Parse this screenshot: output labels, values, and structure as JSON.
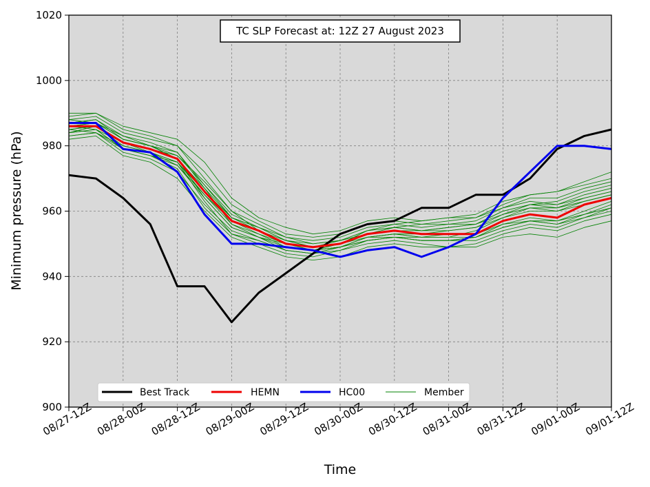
{
  "chart_data": {
    "type": "line",
    "title": "TC SLP Forecast at: 12Z 27 August 2023",
    "xlabel": "Time",
    "ylabel": "Minimum pressure (hPa)",
    "ylim": [
      900,
      1020
    ],
    "yticks": [
      900,
      920,
      940,
      960,
      980,
      1000,
      1020
    ],
    "x_tick_labels": [
      "08/27-12Z",
      "08/28-00Z",
      "08/28-12Z",
      "08/29-00Z",
      "08/29-12Z",
      "08/30-00Z",
      "08/30-12Z",
      "08/31-00Z",
      "08/31-12Z",
      "09/01-00Z",
      "09/01-12Z"
    ],
    "x_step_hours": 6,
    "grid": true,
    "legend_position": "bottom-left",
    "series": [
      {
        "name": "Best Track",
        "color": "#000000",
        "values": [
          971,
          970,
          964,
          956,
          937,
          937,
          926,
          935,
          941,
          947,
          953,
          956,
          957,
          961,
          961,
          965,
          965,
          970,
          979,
          983,
          985
        ]
      },
      {
        "name": "HEMN",
        "color": "#ee0000",
        "values": [
          986,
          986,
          981,
          979,
          976,
          966,
          957,
          954,
          950,
          949,
          950,
          953,
          954,
          953,
          953,
          953,
          957,
          959,
          958,
          962,
          964
        ]
      },
      {
        "name": "HC00",
        "color": "#0000ee",
        "values": [
          987,
          987,
          979,
          978,
          972,
          959,
          950,
          950,
          949,
          948,
          946,
          948,
          949,
          946,
          949,
          953,
          964,
          972,
          980,
          980,
          979
        ]
      },
      {
        "name": "Member",
        "color": "#008000",
        "members": [
          [
            985,
            986,
            981,
            979,
            976,
            966,
            957,
            954,
            950,
            949,
            950,
            953,
            954,
            953,
            953,
            953,
            957,
            959,
            958,
            962,
            964
          ],
          [
            988,
            989,
            984,
            982,
            980,
            970,
            960,
            956,
            952,
            951,
            952,
            955,
            956,
            955,
            956,
            956,
            960,
            962,
            962,
            965,
            967
          ],
          [
            983,
            984,
            978,
            976,
            972,
            962,
            954,
            951,
            948,
            947,
            948,
            951,
            952,
            951,
            951,
            951,
            954,
            956,
            955,
            958,
            960
          ],
          [
            990,
            990,
            986,
            984,
            982,
            975,
            964,
            958,
            955,
            953,
            954,
            957,
            958,
            957,
            958,
            959,
            963,
            965,
            966,
            969,
            972
          ],
          [
            982,
            983,
            977,
            975,
            970,
            960,
            952,
            949,
            946,
            945,
            946,
            949,
            950,
            949,
            949,
            949,
            952,
            953,
            952,
            955,
            957
          ],
          [
            987,
            988,
            982,
            980,
            978,
            968,
            958,
            955,
            951,
            950,
            951,
            954,
            955,
            954,
            954,
            955,
            958,
            960,
            960,
            963,
            965
          ],
          [
            984,
            985,
            979,
            977,
            974,
            964,
            955,
            952,
            949,
            948,
            949,
            952,
            953,
            952,
            952,
            952,
            955,
            957,
            956,
            959,
            961
          ],
          [
            986,
            987,
            983,
            981,
            978,
            967,
            956,
            952,
            950,
            948,
            950,
            953,
            955,
            956,
            957,
            958,
            962,
            965,
            966,
            968,
            970
          ],
          [
            985,
            986,
            980,
            978,
            975,
            963,
            953,
            950,
            947,
            946,
            948,
            950,
            951,
            950,
            949,
            950,
            953,
            955,
            954,
            957,
            959
          ],
          [
            989,
            990,
            985,
            983,
            980,
            972,
            962,
            957,
            953,
            952,
            953,
            956,
            957,
            956,
            956,
            957,
            961,
            964,
            964,
            967,
            969
          ],
          [
            983,
            984,
            979,
            977,
            973,
            961,
            953,
            951,
            948,
            947,
            949,
            952,
            953,
            953,
            954,
            955,
            959,
            962,
            963,
            966,
            968
          ],
          [
            988,
            987,
            982,
            980,
            976,
            967,
            958,
            955,
            952,
            950,
            951,
            953,
            954,
            954,
            955,
            956,
            959,
            961,
            961,
            964,
            966
          ],
          [
            986,
            985,
            979,
            977,
            975,
            965,
            956,
            953,
            949,
            948,
            950,
            952,
            952,
            951,
            951,
            952,
            956,
            958,
            957,
            960,
            963
          ],
          [
            984,
            986,
            981,
            979,
            977,
            969,
            960,
            954,
            951,
            949,
            950,
            954,
            956,
            957,
            958,
            958,
            961,
            963,
            962,
            964,
            966
          ],
          [
            987,
            988,
            983,
            980,
            976,
            964,
            955,
            952,
            948,
            947,
            949,
            951,
            952,
            952,
            953,
            953,
            956,
            957,
            957,
            959,
            962
          ],
          [
            985,
            984,
            980,
            978,
            974,
            965,
            957,
            953,
            950,
            948,
            949,
            952,
            953,
            952,
            952,
            954,
            958,
            961,
            960,
            962,
            964
          ],
          [
            986,
            987,
            982,
            980,
            977,
            968,
            959,
            955,
            951,
            949,
            951,
            954,
            955,
            954,
            955,
            956,
            960,
            962,
            961,
            963,
            965
          ],
          [
            984,
            985,
            981,
            978,
            975,
            966,
            958,
            954,
            950,
            948,
            949,
            951,
            952,
            951,
            951,
            952,
            955,
            957,
            956,
            958,
            961
          ]
        ]
      }
    ]
  }
}
